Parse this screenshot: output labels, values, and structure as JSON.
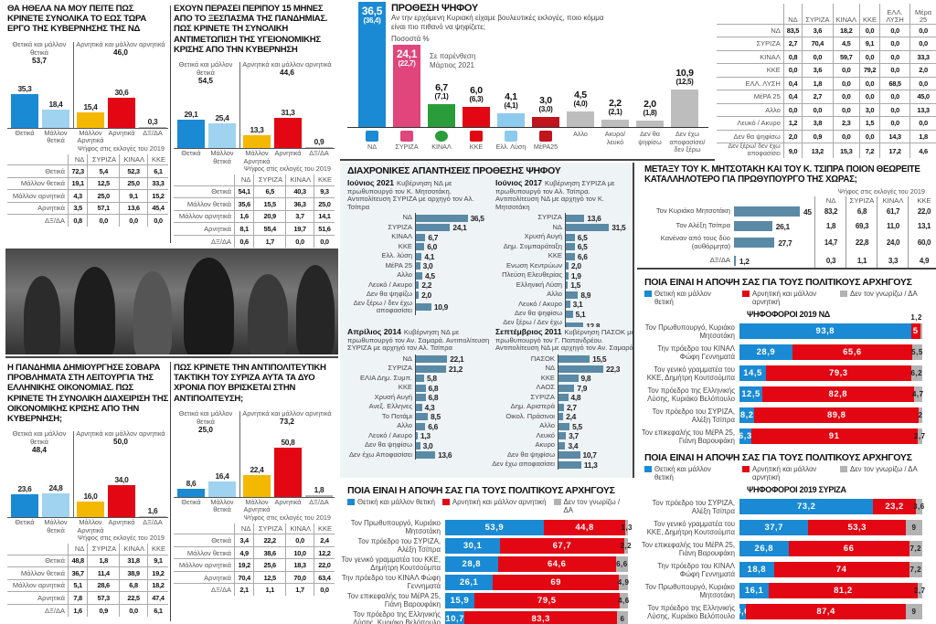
{
  "colors": {
    "positive": "#1a8ad4",
    "rather_positive": "#9fd3f0",
    "rather_negative": "#f5b800",
    "negative": "#e30613",
    "dk_na": "#b3b3b3",
    "history_bar": "#5a8aa5"
  },
  "photo": {
    "description_icon": "crowd-photo"
  },
  "chart_data": [
    {
      "type": "bar",
      "title": "ΘΑ ΗΘΕΛΑ ΝΑ ΜΟΥ ΠΕΙΤΕ ΠΩΣ ΚΡΙΝΕΤΕ ΣΥΝΟΛΙΚΑ ΤΟ ΕΩΣ ΤΩΡΑ ΕΡΓΟ ΤΗΣ ΚΥΒΕΡΝΗΣΗΣ ΤΗΣ ΝΔ",
      "groups": [
        {
          "label": "Θετικά και μάλλον θετικά",
          "total": "53,7"
        },
        {
          "label": "Αρνητικά και μάλλον αρνητικά",
          "total": "46,0"
        }
      ],
      "categories": [
        "Θετικά",
        "Μάλλον θετικά",
        "Μάλλον Αρνητικά",
        "Αρνητικά",
        "ΔΞ/ΔΑ"
      ],
      "values": [
        35.3,
        18.4,
        15.4,
        30.6,
        0.3
      ],
      "table": {
        "caption": "Ψήφος στις εκλογές του 2019",
        "columns": [
          "ΝΔ",
          "ΣΥΡΙΖΑ",
          "ΚΙΝΑΛ",
          "ΚΚΕ"
        ],
        "rows": [
          {
            "label": "Θετικά",
            "values": [
              "72,3",
              "5,4",
              "52,3",
              "6,1"
            ]
          },
          {
            "label": "Μάλλον θετικά",
            "values": [
              "19,1",
              "12,5",
              "25,0",
              "33,3"
            ]
          },
          {
            "label": "Μάλλον αρνητικά",
            "values": [
              "4,3",
              "25,0",
              "9,1",
              "15,2"
            ]
          },
          {
            "label": "Αρνητικά",
            "values": [
              "3,5",
              "57,1",
              "13,6",
              "45,4"
            ]
          },
          {
            "label": "ΔΞ/ΔΑ",
            "values": [
              "0,8",
              "0,0",
              "0,0",
              "0,0"
            ]
          }
        ]
      }
    },
    {
      "type": "bar",
      "title": "ΕΧΟΥΝ ΠΕΡΑΣΕΙ ΠΕΡΙΠΟΥ 15 ΜΗΝΕΣ ΑΠΟ ΤΟ ΞΕΣΠΑΣΜΑ ΤΗΣ ΠΑΝΔΗΜΙΑΣ. ΠΩΣ ΚΡΙΝΕΤΕ ΤΗ ΣΥΝΟΛΙΚΗ ΑΝΤΙΜΕΤΩΠΙΣΗ ΤΗΣ ΥΓΕΙΟΝΟΜΙΚΗΣ ΚΡΙΣΗΣ ΑΠΟ ΤΗΝ ΚΥΒΕΡΝΗΣΗ",
      "groups": [
        {
          "label": "Θετικά και μάλλον θετικά",
          "total": "54,5"
        },
        {
          "label": "Αρνητικά και μάλλον αρνητικά",
          "total": "44,6"
        }
      ],
      "categories": [
        "Θετικά",
        "Μάλλον θετικά",
        "Μάλλον Αρνητικά",
        "Αρνητικά",
        "ΔΞ/ΔΑ"
      ],
      "values": [
        29.1,
        25.4,
        13.3,
        31.3,
        0.9
      ],
      "table": {
        "caption": "Ψήφος στις εκλογές του 2019",
        "columns": [
          "ΝΔ",
          "ΣΥΡΙΖΑ",
          "ΚΙΝΑΛ",
          "ΚΚΕ"
        ],
        "rows": [
          {
            "label": "Θετικά",
            "values": [
              "54,1",
              "6,5",
              "40,3",
              "9,3"
            ]
          },
          {
            "label": "Μάλλον θετικά",
            "values": [
              "35,6",
              "15,5",
              "36,3",
              "25,0"
            ]
          },
          {
            "label": "Μάλλον αρνητικά",
            "values": [
              "1,6",
              "20,9",
              "3,7",
              "14,1"
            ]
          },
          {
            "label": "Αρνητικά",
            "values": [
              "8,1",
              "55,4",
              "19,7",
              "51,6"
            ]
          },
          {
            "label": "ΔΞ/ΔΑ",
            "values": [
              "0,6",
              "1,7",
              "0,0",
              "0,0"
            ]
          }
        ]
      }
    },
    {
      "type": "bar",
      "title": "Η ΠΑΝΔΗΜΙΑ ΔΗΜΙΟΥΡΓΗΣΕ ΣΟΒΑΡΑ ΠΡΟΒΛΗΜΑΤΑ ΣΤΗ ΛΕΙΤΟΥΡΓΙΑ ΤΗΣ ΕΛΛΗΝΙΚΗΣ ΟΙΚΟΝΟΜΙΑΣ. ΠΩΣ ΚΡΙΝΕΤΕ ΤΗ ΣΥΝΟΛΙΚΗ ΔΙΑΧΕΙΡΙΣΗ ΤΗΣ ΟΙΚΟΝΟΜΙΚΗΣ ΚΡΙΣΗΣ ΑΠΟ ΤΗΝ ΚΥΒΕΡΝΗΣΗ;",
      "groups": [
        {
          "label": "Θετικά και μάλλον θετικά",
          "total": "48,4"
        },
        {
          "label": "Αρνητικά και μάλλον αρνητικά",
          "total": "50,0"
        }
      ],
      "categories": [
        "Θετικά",
        "Μάλλον θετικά",
        "Μάλλον Αρνητικά",
        "Αρνητικά",
        "ΔΞ/ΔΑ"
      ],
      "values": [
        23.6,
        24.8,
        16.0,
        34.0,
        1.6
      ],
      "table": {
        "caption": "Ψήφος στις εκλογές του 2019",
        "columns": [
          "ΝΔ",
          "ΣΥΡΙΖΑ",
          "ΚΙΝΑΛ",
          "ΚΚΕ"
        ],
        "rows": [
          {
            "label": "Θετικά",
            "values": [
              "48,8",
              "1,8",
              "31,8",
              "9,1"
            ]
          },
          {
            "label": "Μάλλον θετικά",
            "values": [
              "36,7",
              "11,4",
              "38,9",
              "19,2"
            ]
          },
          {
            "label": "Μάλλον αρνητικά",
            "values": [
              "5,1",
              "28,6",
              "6,8",
              "18,2"
            ]
          },
          {
            "label": "Αρνητικά",
            "values": [
              "7,8",
              "57,3",
              "22,5",
              "47,4"
            ]
          },
          {
            "label": "ΔΞ/ΔΑ",
            "values": [
              "1,6",
              "0,9",
              "0,0",
              "6,1"
            ]
          }
        ]
      }
    },
    {
      "type": "bar",
      "title": "ΠΩΣ ΚΡΙΝΕΤΕ ΤΗΝ ΑΝΤΙΠΟΛΙΤΕΥΤΙΚΗ ΤΑΚΤΙΚΗ ΤΟΥ ΣΥΡΙΖΑ ΑΥΤΑ ΤΑ ΔΥΟ ΧΡΟΝΙΑ ΠΟΥ ΒΡΙΣΚΕΤΑΙ ΣΤΗΝ ΑΝΤΙΠΟΛΙΤΕΥΣΗ;",
      "groups": [
        {
          "label": "Θετικά και μάλλον θετικά",
          "total": "25,0"
        },
        {
          "label": "Αρνητικά και μάλλον αρνητικά",
          "total": "73,2"
        }
      ],
      "categories": [
        "Θετικά",
        "Μάλλον θετικά",
        "Μάλλον Αρνητικά",
        "Αρνητικά",
        "ΔΞ/ΔΑ"
      ],
      "values": [
        8.6,
        16.4,
        22.4,
        50.8,
        1.8
      ],
      "table": {
        "caption": "Ψήφος στις εκλογές του 2019",
        "columns": [
          "ΝΔ",
          "ΣΥΡΙΖΑ",
          "ΚΙΝΑΛ",
          "ΚΚΕ"
        ],
        "rows": [
          {
            "label": "Θετικά",
            "values": [
              "3,4",
              "22,2",
              "0,0",
              "2,4"
            ]
          },
          {
            "label": "Μάλλον θετικά",
            "values": [
              "4,9",
              "38,6",
              "10,0",
              "12,2"
            ]
          },
          {
            "label": "Μάλλον αρνητικά",
            "values": [
              "19,2",
              "25,6",
              "18,3",
              "22,0"
            ]
          },
          {
            "label": "Αρνητικά",
            "values": [
              "70,4",
              "12,5",
              "70,0",
              "63,4"
            ]
          },
          {
            "label": "ΔΞ/ΔΑ",
            "values": [
              "2,1",
              "1,1",
              "1,7",
              "0,0"
            ]
          }
        ]
      }
    },
    {
      "type": "bar",
      "title": "ΠΡΟΘΕΣΗ ΨΗΦΟΥ",
      "subtitle": "Αν την ερχόμενη Κυριακή είχαμε βουλευτικές εκλογές, ποιο κόμμα είναι πιο πιθανό να ψηφίζετε;",
      "unit": "Ποσοστά %",
      "note": "Σε παρένθεση Μάρτιος 2021",
      "categories": [
        "ΝΔ",
        "ΣΥΡΙΖΑ",
        "ΚΙΝΑΛ",
        "ΚΚΕ",
        "Ελλ. Λύση",
        "ΜέΡΑ25",
        "Αλλο",
        "Ακυρο/ λευκό",
        "Δεν θα ψηφίσω",
        "Δεν έχω αποφασίσει/ δεν ξέρω"
      ],
      "values": [
        36.5,
        24.1,
        6.7,
        6.0,
        4.1,
        3.0,
        4.5,
        2.2,
        2.0,
        10.9
      ],
      "previous": [
        36.4,
        22.7,
        7.1,
        6.3,
        4.1,
        3.0,
        4.0,
        2.1,
        1.8,
        12.5
      ],
      "colors": [
        "#1a8ad4",
        "#e0457b",
        "#2a9d3a",
        "#e30613",
        "#8ccbee",
        "#c0141e",
        "#bdbdbd",
        "#bdbdbd",
        "#bdbdbd",
        "#bdbdbd"
      ],
      "logos": [
        "ΝΔ",
        "ΣΥΡΙΖΑ",
        "ΚΙΝΑΛ",
        "ΚΚΕ",
        "Ελλ. Λύση",
        "ΜέΡΑ25"
      ]
    },
    {
      "type": "table",
      "columns": [
        "ΝΔ",
        "ΣΥΡΙΖΑ",
        "ΚΙΝΑΛ",
        "ΚΚΕ",
        "ΕΛΛ. ΛΥΣΗ",
        "Μέρα 25"
      ],
      "rows": [
        {
          "label": "ΝΔ",
          "values": [
            "83,5",
            "3,6",
            "18,2",
            "0,0",
            "0,0",
            "0,0"
          ]
        },
        {
          "label": "ΣΥΡΙΖΑ",
          "values": [
            "2,7",
            "70,4",
            "4,5",
            "9,1",
            "0,0",
            "0,0"
          ]
        },
        {
          "label": "ΚΙΝΑΛ",
          "values": [
            "0,8",
            "0,0",
            "59,7",
            "0,0",
            "0,0",
            "33,3"
          ]
        },
        {
          "label": "ΚΚΕ",
          "values": [
            "0,0",
            "3,6",
            "0,0",
            "79,2",
            "0,0",
            "2,0"
          ]
        },
        {
          "label": "ΕΛΛ. ΛΥΣΗ",
          "values": [
            "0,4",
            "1,8",
            "0,0",
            "0,0",
            "68,5",
            "0,0"
          ]
        },
        {
          "label": "ΜέΡΑ 25",
          "values": [
            "0,4",
            "2,7",
            "0,0",
            "0,0",
            "0,0",
            "45,0"
          ]
        },
        {
          "label": "Αλλο",
          "values": [
            "0,0",
            "0,0",
            "0,0",
            "3,0",
            "0,0",
            "13,3"
          ]
        },
        {
          "label": "Λευκό / Ακυρο",
          "values": [
            "1,2",
            "3,8",
            "2,3",
            "1,5",
            "0,0",
            "0,0"
          ]
        },
        {
          "label": "Δεν θα ψηφίσω",
          "values": [
            "2,0",
            "0,9",
            "0,0",
            "0,0",
            "14,3",
            "1,8"
          ]
        },
        {
          "label": "Δεν ξέρω/ δεν έχω αποφασίσει",
          "values": [
            "9,0",
            "13,2",
            "15,3",
            "7,2",
            "17,2",
            "4,6"
          ]
        }
      ]
    },
    {
      "type": "bar",
      "title": "ΔΙΑΧΡΟΝΙΚΕΣ ΑΠΑΝΤΗΣΕΙΣ ΠΡΟΘΕΣΗΣ ΨΗΦΟΥ",
      "period": "Ιούνιος 2021",
      "description": "Κυβέρνηση ΝΔ με πρωθυπουργό τον Κ. Μητσοτάκη. Αντιπολίτευση ΣΥΡΙΖΑ με αρχηγό τον Αλ. Τσίπρα",
      "categories": [
        "ΝΔ",
        "ΣΥΡΙΖΑ",
        "ΚΙΝΑΛ",
        "ΚΚΕ",
        "Ελλ. λύση",
        "ΜέΡΑ 25",
        "Αλλο",
        "Λευκό / Ακυρο",
        "Δεν θα ψηφίζω",
        "Δεν ξέρω / δεν έχω αποφασίσει"
      ],
      "values": [
        36.5,
        24.1,
        6.7,
        6.0,
        4.1,
        3.0,
        4.5,
        2.2,
        2.0,
        10.9
      ]
    },
    {
      "type": "bar",
      "period": "Ιούνιος 2017",
      "description": "Κυβέρνηση ΣΥΡΙΖΑ με πρωθυπουργό τον Αλ. Τσίπρα. Αντιπολίτευση ΝΔ με αρχηγό τον Κ. Μητσοτάκη",
      "categories": [
        "ΣΥΡΙΖΑ",
        "ΝΔ",
        "Χρυσή Αυγή",
        "Δημ. Συμπαράταξη",
        "ΚΚΕ",
        "Ενωση Κεντρώων",
        "Πλεύση Ελευθερίας",
        "Ελληνική Λύση",
        "Αλλο",
        "Λευκό / Ακυρο",
        "Δεν θα ψηφίσω",
        "Δεν ξέρω / Δεν έχω αποφασίσει"
      ],
      "values": [
        13.6,
        31.5,
        6.5,
        6.5,
        6.6,
        2.0,
        1.9,
        1.5,
        8.9,
        3.1,
        5.1,
        12.8
      ]
    },
    {
      "type": "bar",
      "period": "Απρίλιος 2014",
      "description": "Κυβέρνηση ΝΔ με πρωθυπουργό τον Αν. Σαμαρά. Αντιπολίτευση ΣΥΡΙΖΑ με αρχηγό τον Αλ. Τσίπρα",
      "categories": [
        "ΝΔ",
        "ΣΥΡΙΖΑ",
        "ΕΛΙΑ Δημ. Συμπ.",
        "ΚΚΕ",
        "Χρυσή Αυγή",
        "Ανεξ. Ελληνες",
        "Το Ποτάμι",
        "Αλλο",
        "Λευκό / Ακυρο",
        "Δεν θα ψηφίσω",
        "Δεν έχω Αποφασίσει"
      ],
      "values": [
        22.1,
        21.2,
        5.8,
        6.8,
        6.8,
        4.3,
        8.5,
        6.6,
        1.3,
        3.0,
        13.6
      ]
    },
    {
      "type": "bar",
      "period": "Σεπτέμβριος 2011",
      "description": "Κυβέρνηση ΠΑΣΟΚ με πρωθυπουργό τον Γ. Παπανδρέου. Αντιπολίτευση ΝΔ με αρχηγό τον Αν. Σαμαρά",
      "categories": [
        "ΠΑΣΟΚ",
        "ΝΔ",
        "ΚΚΕ",
        "ΛΑΟΣ",
        "ΣΥΡΙΖΑ",
        "Δημ. Αριστερά",
        "Οικολ. Πράσινοι",
        "Αλλο",
        "Λευκό",
        "Ακυρο",
        "Δεν θα ψηφίσω",
        "Δεν έχω αποφασίσει"
      ],
      "values": [
        15.5,
        22.3,
        9.8,
        7.9,
        4.8,
        2.7,
        2.4,
        5.5,
        3.7,
        3.4,
        10.7,
        11.3
      ]
    },
    {
      "type": "bar",
      "title": "ΠΟΙΑ ΕΙΝΑΙ Η ΑΠΟΨΗ ΣΑΣ ΓΙΑ ΤΟΥΣ ΠΟΛΙΤΙΚΟΥΣ ΑΡΧΗΓΟΥΣ",
      "legend": [
        "Θετική και μάλλον θετική",
        "Αρνητική και μάλλον αρνητική",
        "Δεν τον γνωρίζω / ΔΑ"
      ],
      "categories": [
        "Τον Πρωθυπουργό, Κυριάκο Μητσοτάκη",
        "Τον πρόεδρο του ΣΥΡΙΖΑ, Αλέξη Τσίπρα",
        "Τον γενικό γραμματέα του ΚΚΕ, Δημήτρη Κουτσούμπα",
        "Την πρόεδρο του ΚΙΝΑΛ Φώφη Γεννηματά",
        "Τον επικεφαλής του ΜέΡΑ 25, Γιάνη Βαρουφάκη",
        "Τον πρόεδρο της Ελληνικής Λύσης, Κυριάκο Βελόπουλο"
      ],
      "series": [
        {
          "name": "Θετική και μάλλον θετική",
          "values": [
            53.9,
            30.1,
            28.8,
            26.1,
            15.9,
            10.7
          ]
        },
        {
          "name": "Αρνητική και μάλλον αρνητική",
          "values": [
            44.8,
            67.7,
            64.6,
            69.0,
            79.5,
            83.3
          ]
        },
        {
          "name": "Δεν τον γνωρίζω / ΔΑ",
          "values": [
            1.3,
            2.2,
            6.6,
            4.9,
            4.6,
            6.0
          ]
        }
      ]
    },
    {
      "type": "bar",
      "title": "ΜΕΤΑΞΥ ΤΟΥ κ. ΜΗΤΣΟΤΑΚΗ ΚΑΙ ΤΟΥ κ. ΤΣΙΠΡΑ ΠΟΙΟΝ ΘΕΩΡΕΙΤΕ ΚΑΤΑΛΛΗΛΟΤΕΡΟ ΓΙΑ ΠΡΩΘΥΠΟΥΡΓΟ ΤΗΣ ΧΩΡΑΣ;",
      "categories": [
        "Τον Κυριάκο Μητσοτάκη",
        "Τον Αλέξη Τσίπρα",
        "Κανέναν από τους δύο (αυθόρμητα)",
        "ΔΞ/ΔΑ"
      ],
      "values": [
        45,
        26.1,
        27.7,
        1.2
      ],
      "value_labels": [
        "45",
        "26,1",
        "27,7",
        "1,2"
      ],
      "table": {
        "caption": "Ψήφος στις εκλογές του 2019",
        "columns": [
          "ΝΔ",
          "ΣΥΡΙΖΑ",
          "ΚΙΝΑΛ",
          "ΚΚΕ"
        ],
        "rows": [
          [
            "83,2",
            "6,8",
            "61,7",
            "22,0"
          ],
          [
            "1,8",
            "69,3",
            "11,0",
            "13,1"
          ],
          [
            "14,7",
            "22,8",
            "24,0",
            "60,0"
          ],
          [
            "0,3",
            "1,1",
            "3,3",
            "4,9"
          ]
        ]
      }
    },
    {
      "type": "bar",
      "title": "ΠΟΙΑ ΕΙΝΑΙ Η ΑΠΟΨΗ ΣΑΣ ΓΙΑ ΤΟΥΣ ΠΟΛΙΤΙΚΟΥΣ ΑΡΧΗΓΟΥΣ",
      "subtitle": "ΨΗΦΟΦΟΡΟΙ 2019 ΝΔ",
      "legend": [
        "Θετική και μάλλον θετική",
        "Αρνητική και μάλλον αρνητική",
        "Δεν τον γνωρίζω / ΔΑ"
      ],
      "categories": [
        "Τον Πρωθυπουργό, Κυριάκο Μητσοτάκη",
        "Την πρόεδρο του ΚΙΝΑΛ Φώφη Γεννηματά",
        "Τον γενικό γραμματέα του ΚΚΕ, Δημήτρη Κουτσούμπα",
        "Τον πρόεδρο της Ελληνικής Λύσης, Κυριάκο Βελόπουλο",
        "Τον πρόεδρο του ΣΥΡΙΖΑ, Αλέξη Τσίπρα",
        "Τον επικεφαλής του ΜέΡΑ 25, Γιάνη Βαρουφάκη"
      ],
      "series": [
        {
          "name": "Θετική και μάλλον θετική",
          "values": [
            93.8,
            28.9,
            14.5,
            12.5,
            8.2,
            6.3
          ]
        },
        {
          "name": "Αρνητική και μάλλον αρνητική",
          "values": [
            5,
            65.6,
            79.3,
            82.8,
            89.8,
            91.0
          ]
        },
        {
          "name": "Δεν τον γνωρίζω / ΔΑ",
          "values": [
            1.2,
            5.5,
            6.2,
            4.7,
            2.0,
            2.7
          ]
        }
      ]
    },
    {
      "type": "bar",
      "title": "ΠΟΙΑ ΕΙΝΑΙ Η ΑΠΟΨΗ ΣΑΣ ΓΙΑ ΤΟΥΣ ΠΟΛΙΤΙΚΟΥΣ ΑΡΧΗΓΟΥΣ",
      "subtitle": "ΨΗΦΟΦΟΡΟΙ 2019 ΣΥΡΙΖΑ",
      "legend": [
        "Θετική και μάλλον θετική",
        "Αρνητική και μάλλον αρνητική",
        "Δεν τον γνωρίζω / ΔΑ"
      ],
      "categories": [
        "Τον πρόεδρο του ΣΥΡΙΖΑ, Αλέξη Τσίπρα",
        "Τον γενικό γραμματέα του ΚΚΕ, Δημήτρη Κουτσούμπα",
        "Τον επικεφαλής του ΜέΡΑ 25, Γιάνη Βαρουφάκη",
        "Την πρόεδρο του ΚΙΝΑΛ Φώφη Γεννηματά",
        "Τον Πρωθυπουργό, Κυριάκο Μητσοτάκη",
        "Τον πρόεδρο της Ελληνικής Λύσης, Κυριάκο Βελόπουλο"
      ],
      "series": [
        {
          "name": "Θετική και μάλλον θετική",
          "values": [
            73.2,
            37.7,
            26.8,
            18.8,
            16.1,
            3.6
          ]
        },
        {
          "name": "Αρνητική και μάλλον αρνητική",
          "values": [
            23.2,
            53.3,
            66.0,
            74.0,
            81.2,
            87.4
          ]
        },
        {
          "name": "Δεν τον γνωρίζω / ΔΑ",
          "values": [
            3.6,
            9.0,
            7.2,
            7.2,
            2.7,
            9.0
          ]
        }
      ]
    }
  ]
}
